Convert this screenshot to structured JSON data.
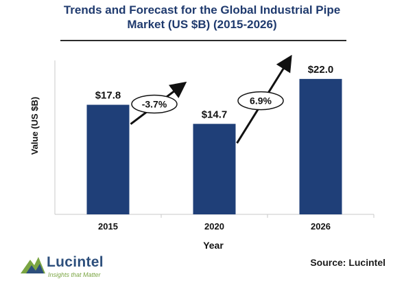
{
  "chart_data": {
    "type": "bar",
    "title": "Trends and Forecast for the Global Industrial Pipe Market (US $B) (2015-2026)",
    "title_lines": [
      "Trends and Forecast for the Global Industrial Pipe",
      "Market (US $B) (2015-2026)"
    ],
    "categories": [
      "2015",
      "2020",
      "2026"
    ],
    "values": [
      17.8,
      14.7,
      22.0
    ],
    "value_labels": [
      "$17.8",
      "$14.7",
      "$22.0"
    ],
    "xlabel": "Year",
    "ylabel": "Value (US $B)",
    "ylim": [
      0,
      25
    ],
    "grid": false,
    "bar_color": "#1f3f78",
    "annotations": [
      {
        "label": "-3.7%",
        "from": "2015",
        "to": "2020"
      },
      {
        "label": "6.9%",
        "from": "2020",
        "to": "2026"
      }
    ]
  },
  "logo": {
    "name": "Lucintel",
    "tagline": "Insights that Matter"
  },
  "source": "Source: Lucintel"
}
